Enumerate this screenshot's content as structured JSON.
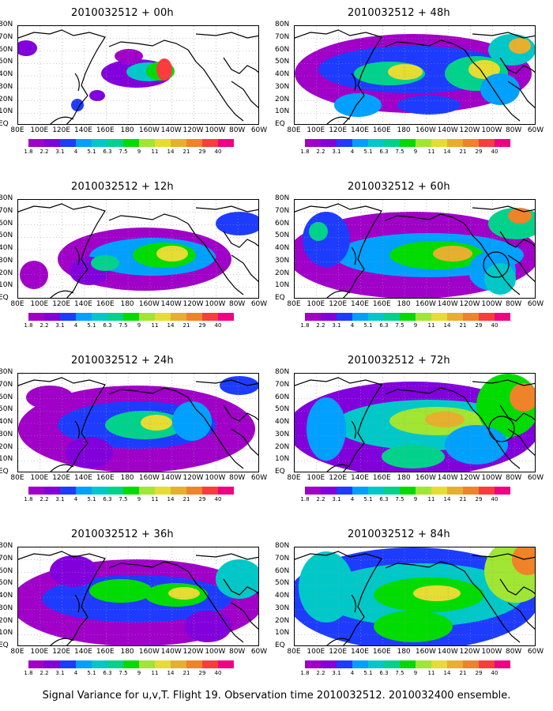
{
  "figure": {
    "footer": "Signal Variance for u,v,T. Flight 19. Observation time 2010032512. 2010032400 ensemble.",
    "lat_labels": [
      "80N",
      "70N",
      "60N",
      "50N",
      "40N",
      "30N",
      "20N",
      "10N",
      "EQ"
    ],
    "lon_labels": [
      "80E",
      "100E",
      "120E",
      "140E",
      "160E",
      "180",
      "160W",
      "140W",
      "120W",
      "100W",
      "80W",
      "60W"
    ],
    "colorbar": {
      "labels": [
        "1.8",
        "2.2",
        "3.1",
        "4",
        "5.1",
        "6.3",
        "7.5",
        "9",
        "11",
        "14",
        "21",
        "29",
        "40"
      ],
      "colors": [
        "#a000c8",
        "#8200dc",
        "#1e3cff",
        "#00a0ff",
        "#00c8c8",
        "#00d28c",
        "#00dc00",
        "#a0e632",
        "#e6dc32",
        "#e6af2d",
        "#f08228",
        "#fa3c3c",
        "#f00082"
      ]
    },
    "panels": [
      {
        "title": "2010032512 + 00h"
      },
      {
        "title": "2010032512 + 48h"
      },
      {
        "title": "2010032512 + 12h"
      },
      {
        "title": "2010032512 + 60h"
      },
      {
        "title": "2010032512 + 24h"
      },
      {
        "title": "2010032512 + 72h"
      },
      {
        "title": "2010032512 + 36h"
      },
      {
        "title": "2010032512 + 84h"
      }
    ]
  }
}
